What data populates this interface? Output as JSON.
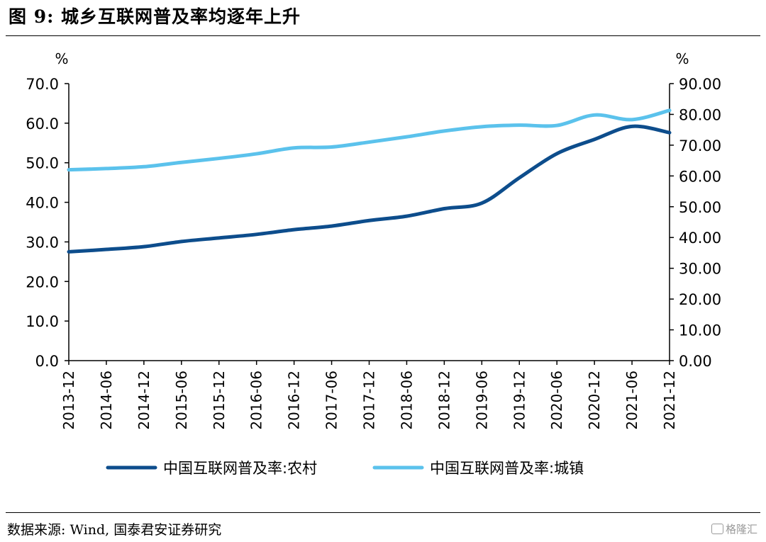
{
  "header": {
    "title": "图 9: 城乡互联网普及率均逐年上升"
  },
  "footer": {
    "source": "数据来源: Wind, 国泰君安证券研究",
    "watermark": "格隆汇"
  },
  "chart_data": {
    "type": "line",
    "title": "",
    "left_axis": {
      "unit": "%",
      "range": [
        0,
        70
      ],
      "ticks": [
        "0.0",
        "10.0",
        "20.0",
        "30.0",
        "40.0",
        "50.0",
        "60.0",
        "70.0"
      ]
    },
    "right_axis": {
      "unit": "%",
      "range": [
        0,
        90
      ],
      "ticks": [
        "0.00",
        "10.00",
        "20.00",
        "30.00",
        "40.00",
        "50.00",
        "60.00",
        "70.00",
        "80.00",
        "90.00"
      ]
    },
    "categories": [
      "2013-12",
      "2014-06",
      "2014-12",
      "2015-06",
      "2015-12",
      "2016-06",
      "2016-12",
      "2017-06",
      "2017-12",
      "2018-06",
      "2018-12",
      "2019-06",
      "2019-12",
      "2020-06",
      "2020-12",
      "2021-06",
      "2021-12"
    ],
    "grid": false,
    "legend_position": "bottom",
    "series": [
      {
        "name": "中国互联网普及率:农村",
        "axis": "left",
        "color": "#0d4d8c",
        "values": [
          27.5,
          28.1,
          28.8,
          30.1,
          31.0,
          31.9,
          33.1,
          34.0,
          35.4,
          36.5,
          38.4,
          39.8,
          46.2,
          52.3,
          55.9,
          59.2,
          57.6
        ]
      },
      {
        "name": "中国互联网普及率:城镇",
        "axis": "right",
        "color": "#5bc2ec",
        "values": [
          62.0,
          62.4,
          63.0,
          64.4,
          65.7,
          67.2,
          69.1,
          69.4,
          71.0,
          72.7,
          74.6,
          76.0,
          76.5,
          76.4,
          79.8,
          78.3,
          81.3
        ]
      }
    ]
  }
}
